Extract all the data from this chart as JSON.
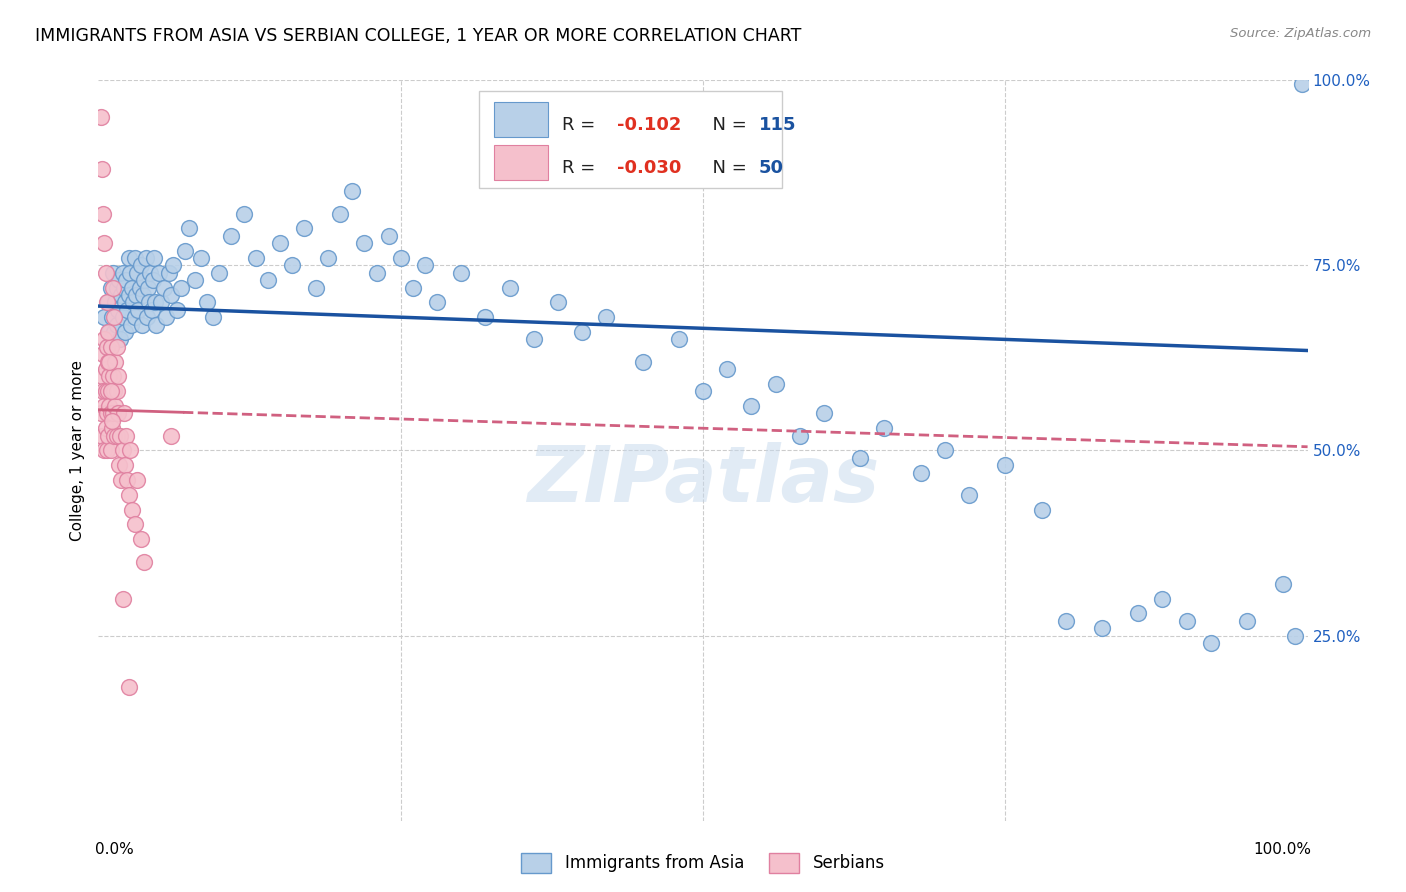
{
  "title": "IMMIGRANTS FROM ASIA VS SERBIAN COLLEGE, 1 YEAR OR MORE CORRELATION CHART",
  "source": "Source: ZipAtlas.com",
  "ylabel": "College, 1 year or more",
  "xlim": [
    0.0,
    1.0
  ],
  "ylim": [
    0.0,
    1.0
  ],
  "blue_R": -0.102,
  "blue_N": 115,
  "pink_R": -0.03,
  "pink_N": 50,
  "blue_color": "#b8d0e8",
  "blue_edge": "#6699cc",
  "pink_color": "#f5c0cc",
  "pink_edge": "#e080a0",
  "blue_line_color": "#1a52a0",
  "pink_line_color": "#d06080",
  "watermark": "ZIPatlas",
  "legend_label_blue": "Immigrants from Asia",
  "legend_label_pink": "Serbians",
  "blue_line_start_y": 0.695,
  "blue_line_end_y": 0.635,
  "pink_line_start_y": 0.555,
  "pink_line_end_y": 0.505,
  "blue_scatter_x": [
    0.005,
    0.007,
    0.008,
    0.009,
    0.01,
    0.01,
    0.011,
    0.012,
    0.013,
    0.014,
    0.015,
    0.015,
    0.016,
    0.017,
    0.018,
    0.019,
    0.02,
    0.02,
    0.021,
    0.022,
    0.022,
    0.023,
    0.024,
    0.025,
    0.025,
    0.026,
    0.027,
    0.028,
    0.029,
    0.03,
    0.03,
    0.031,
    0.032,
    0.033,
    0.034,
    0.035,
    0.036,
    0.037,
    0.038,
    0.039,
    0.04,
    0.041,
    0.042,
    0.043,
    0.044,
    0.045,
    0.046,
    0.047,
    0.048,
    0.05,
    0.052,
    0.054,
    0.056,
    0.058,
    0.06,
    0.062,
    0.065,
    0.068,
    0.072,
    0.075,
    0.08,
    0.085,
    0.09,
    0.095,
    0.1,
    0.11,
    0.12,
    0.13,
    0.14,
    0.15,
    0.16,
    0.17,
    0.18,
    0.19,
    0.2,
    0.21,
    0.22,
    0.23,
    0.24,
    0.25,
    0.26,
    0.27,
    0.28,
    0.3,
    0.32,
    0.34,
    0.36,
    0.38,
    0.4,
    0.42,
    0.45,
    0.48,
    0.5,
    0.52,
    0.54,
    0.56,
    0.58,
    0.6,
    0.63,
    0.65,
    0.68,
    0.7,
    0.72,
    0.75,
    0.78,
    0.8,
    0.83,
    0.86,
    0.88,
    0.9,
    0.92,
    0.95,
    0.98,
    0.99,
    0.995
  ],
  "blue_scatter_y": [
    0.68,
    0.64,
    0.7,
    0.66,
    0.72,
    0.65,
    0.68,
    0.74,
    0.66,
    0.7,
    0.72,
    0.67,
    0.69,
    0.73,
    0.65,
    0.71,
    0.74,
    0.68,
    0.72,
    0.7,
    0.66,
    0.73,
    0.69,
    0.76,
    0.71,
    0.74,
    0.67,
    0.72,
    0.7,
    0.76,
    0.68,
    0.71,
    0.74,
    0.69,
    0.72,
    0.75,
    0.67,
    0.71,
    0.73,
    0.76,
    0.68,
    0.72,
    0.7,
    0.74,
    0.69,
    0.73,
    0.76,
    0.7,
    0.67,
    0.74,
    0.7,
    0.72,
    0.68,
    0.74,
    0.71,
    0.75,
    0.69,
    0.72,
    0.77,
    0.8,
    0.73,
    0.76,
    0.7,
    0.68,
    0.74,
    0.79,
    0.82,
    0.76,
    0.73,
    0.78,
    0.75,
    0.8,
    0.72,
    0.76,
    0.82,
    0.85,
    0.78,
    0.74,
    0.79,
    0.76,
    0.72,
    0.75,
    0.7,
    0.74,
    0.68,
    0.72,
    0.65,
    0.7,
    0.66,
    0.68,
    0.62,
    0.65,
    0.58,
    0.61,
    0.56,
    0.59,
    0.52,
    0.55,
    0.49,
    0.53,
    0.47,
    0.5,
    0.44,
    0.48,
    0.42,
    0.27,
    0.26,
    0.28,
    0.3,
    0.27,
    0.24,
    0.27,
    0.32,
    0.25,
    0.995
  ],
  "pink_scatter_x": [
    0.002,
    0.003,
    0.003,
    0.004,
    0.004,
    0.005,
    0.005,
    0.005,
    0.006,
    0.006,
    0.006,
    0.007,
    0.007,
    0.007,
    0.008,
    0.008,
    0.008,
    0.009,
    0.009,
    0.01,
    0.01,
    0.01,
    0.011,
    0.011,
    0.012,
    0.012,
    0.013,
    0.013,
    0.014,
    0.014,
    0.015,
    0.015,
    0.016,
    0.016,
    0.017,
    0.018,
    0.019,
    0.02,
    0.021,
    0.022,
    0.023,
    0.024,
    0.025,
    0.026,
    0.028,
    0.03,
    0.032,
    0.035,
    0.038,
    0.06
  ],
  "pink_scatter_y": [
    0.55,
    0.6,
    0.52,
    0.58,
    0.63,
    0.56,
    0.5,
    0.65,
    0.53,
    0.58,
    0.61,
    0.55,
    0.5,
    0.64,
    0.58,
    0.52,
    0.62,
    0.56,
    0.6,
    0.55,
    0.5,
    0.64,
    0.58,
    0.53,
    0.6,
    0.55,
    0.58,
    0.52,
    0.62,
    0.56,
    0.52,
    0.58,
    0.55,
    0.6,
    0.48,
    0.52,
    0.46,
    0.5,
    0.55,
    0.48,
    0.52,
    0.46,
    0.44,
    0.5,
    0.42,
    0.4,
    0.46,
    0.38,
    0.35,
    0.52
  ],
  "pink_extra_x": [
    0.002,
    0.003,
    0.004,
    0.005,
    0.006,
    0.007,
    0.008,
    0.009,
    0.01,
    0.011,
    0.012,
    0.013,
    0.015,
    0.02,
    0.025
  ],
  "pink_extra_y": [
    0.95,
    0.88,
    0.82,
    0.78,
    0.74,
    0.7,
    0.66,
    0.62,
    0.58,
    0.54,
    0.72,
    0.68,
    0.64,
    0.3,
    0.18
  ]
}
